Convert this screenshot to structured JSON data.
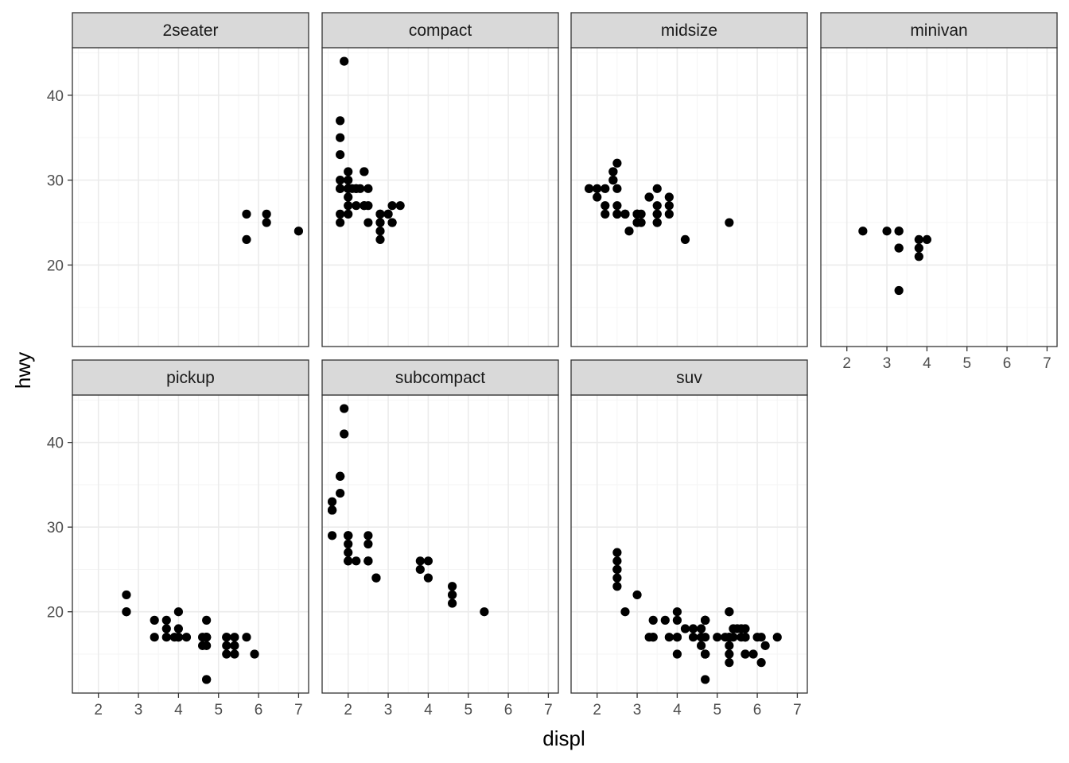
{
  "chart_data": {
    "type": "scatter",
    "facet_by": "class",
    "xlabel": "displ",
    "ylabel": "hwy",
    "xlim": [
      1.35,
      7.25
    ],
    "ylim": [
      10.4,
      45.6
    ],
    "x_ticks": [
      2,
      3,
      4,
      5,
      6,
      7
    ],
    "x_tick_labels": [
      "2",
      "3",
      "4",
      "5",
      "6",
      "7"
    ],
    "y_ticks": [
      20,
      30,
      40
    ],
    "y_tick_labels": [
      "20",
      "30",
      "40"
    ],
    "grid": true,
    "point_color": "#000000",
    "panel_border_color": "#333333",
    "strip_fill": "#d9d9d9",
    "grid_major_color": "#ebebeb",
    "grid_minor_color": "#f5f5f5",
    "facets": [
      {
        "name": "2seater",
        "points": [
          [
            5.7,
            26
          ],
          [
            5.7,
            23
          ],
          [
            6.2,
            26
          ],
          [
            6.2,
            25
          ],
          [
            7.0,
            24
          ]
        ]
      },
      {
        "name": "compact",
        "points": [
          [
            1.8,
            29
          ],
          [
            1.8,
            29
          ],
          [
            2.0,
            31
          ],
          [
            2.0,
            30
          ],
          [
            2.8,
            26
          ],
          [
            2.8,
            26
          ],
          [
            3.1,
            27
          ],
          [
            1.8,
            26
          ],
          [
            1.8,
            25
          ],
          [
            2.0,
            28
          ],
          [
            2.0,
            27
          ],
          [
            2.8,
            25
          ],
          [
            2.8,
            25
          ],
          [
            3.1,
            25
          ],
          [
            3.1,
            25
          ],
          [
            2.2,
            27
          ],
          [
            2.2,
            29
          ],
          [
            2.4,
            31
          ],
          [
            2.4,
            31
          ],
          [
            3.0,
            26
          ],
          [
            3.0,
            26
          ],
          [
            3.3,
            27
          ],
          [
            1.8,
            33
          ],
          [
            1.8,
            35
          ],
          [
            1.8,
            37
          ],
          [
            1.9,
            44
          ],
          [
            2.0,
            29
          ],
          [
            2.0,
            26
          ],
          [
            2.0,
            29
          ],
          [
            2.0,
            29
          ],
          [
            2.8,
            24
          ],
          [
            2.8,
            23
          ],
          [
            2.4,
            27
          ],
          [
            2.5,
            27
          ],
          [
            2.5,
            25
          ],
          [
            2.2,
            29
          ],
          [
            2.4,
            27
          ],
          [
            2.5,
            29
          ],
          [
            1.8,
            30
          ],
          [
            2.1,
            29
          ],
          [
            2.3,
            29
          ]
        ]
      },
      {
        "name": "midsize",
        "points": [
          [
            2.4,
            30
          ],
          [
            2.5,
            26
          ],
          [
            2.5,
            29
          ],
          [
            2.7,
            26
          ],
          [
            3.0,
            26
          ],
          [
            3.0,
            25
          ],
          [
            3.3,
            28
          ],
          [
            3.3,
            28
          ],
          [
            3.5,
            26
          ],
          [
            3.5,
            27
          ],
          [
            3.5,
            29
          ],
          [
            3.5,
            26
          ],
          [
            3.8,
            28
          ],
          [
            3.8,
            27
          ],
          [
            3.8,
            26
          ],
          [
            2.4,
            31
          ],
          [
            2.4,
            31
          ],
          [
            2.5,
            32
          ],
          [
            2.5,
            27
          ],
          [
            3.0,
            25
          ],
          [
            3.0,
            26
          ],
          [
            3.5,
            25
          ],
          [
            3.5,
            25
          ],
          [
            1.8,
            29
          ],
          [
            2.0,
            29
          ],
          [
            2.0,
            28
          ],
          [
            2.8,
            24
          ],
          [
            3.1,
            26
          ],
          [
            4.2,
            23
          ],
          [
            5.3,
            25
          ],
          [
            2.2,
            27
          ],
          [
            2.2,
            26
          ],
          [
            2.5,
            26
          ],
          [
            2.7,
            26
          ],
          [
            3.1,
            25
          ],
          [
            2.4,
            30
          ],
          [
            2.2,
            29
          ],
          [
            3.0,
            26
          ],
          [
            1.8,
            29
          ]
        ]
      },
      {
        "name": "minivan",
        "points": [
          [
            2.4,
            24
          ],
          [
            3.0,
            24
          ],
          [
            3.3,
            22
          ],
          [
            3.3,
            22
          ],
          [
            3.3,
            24
          ],
          [
            3.3,
            24
          ],
          [
            3.3,
            17
          ],
          [
            3.8,
            22
          ],
          [
            3.8,
            21
          ],
          [
            3.8,
            23
          ],
          [
            4.0,
            23
          ]
        ]
      },
      {
        "name": "pickup",
        "points": [
          [
            2.7,
            20
          ],
          [
            2.7,
            22
          ],
          [
            2.7,
            20
          ],
          [
            3.4,
            17
          ],
          [
            3.4,
            19
          ],
          [
            4.0,
            17
          ],
          [
            4.0,
            20
          ],
          [
            4.7,
            17
          ],
          [
            4.7,
            19
          ],
          [
            4.7,
            17
          ],
          [
            4.7,
            17
          ],
          [
            4.7,
            12
          ],
          [
            4.7,
            12
          ],
          [
            5.2,
            17
          ],
          [
            5.2,
            15
          ],
          [
            5.7,
            17
          ],
          [
            5.9,
            15
          ],
          [
            4.7,
            16
          ],
          [
            4.7,
            17
          ],
          [
            5.2,
            16
          ],
          [
            5.4,
            15
          ],
          [
            5.4,
            17
          ],
          [
            3.7,
            19
          ],
          [
            3.7,
            18
          ],
          [
            3.9,
            17
          ],
          [
            4.2,
            17
          ],
          [
            4.0,
            18
          ],
          [
            4.6,
            16
          ],
          [
            4.6,
            17
          ],
          [
            5.4,
            16
          ],
          [
            5.2,
            17
          ],
          [
            3.7,
            17
          ],
          [
            4.0,
            17
          ]
        ]
      },
      {
        "name": "subcompact",
        "points": [
          [
            3.8,
            26
          ],
          [
            3.8,
            25
          ],
          [
            4.0,
            26
          ],
          [
            4.0,
            24
          ],
          [
            4.6,
            21
          ],
          [
            4.6,
            22
          ],
          [
            4.6,
            23
          ],
          [
            4.6,
            22
          ],
          [
            5.4,
            20
          ],
          [
            1.6,
            33
          ],
          [
            1.6,
            32
          ],
          [
            1.6,
            32
          ],
          [
            1.6,
            29
          ],
          [
            1.6,
            32
          ],
          [
            1.8,
            34
          ],
          [
            1.8,
            36
          ],
          [
            1.8,
            36
          ],
          [
            2.0,
            29
          ],
          [
            2.0,
            26
          ],
          [
            2.0,
            27
          ],
          [
            2.0,
            28
          ],
          [
            2.2,
            26
          ],
          [
            2.5,
            26
          ],
          [
            2.5,
            29
          ],
          [
            2.5,
            28
          ],
          [
            2.7,
            24
          ],
          [
            2.7,
            24
          ],
          [
            1.9,
            44
          ],
          [
            1.9,
            41
          ],
          [
            2.0,
            29
          ],
          [
            2.0,
            26
          ],
          [
            2.5,
            26
          ],
          [
            2.5,
            26
          ],
          [
            2.0,
            29
          ]
        ]
      },
      {
        "name": "suv",
        "points": [
          [
            5.3,
            20
          ],
          [
            5.3,
            15
          ],
          [
            5.3,
            20
          ],
          [
            5.7,
            17
          ],
          [
            6.0,
            17
          ],
          [
            5.7,
            17
          ],
          [
            6.5,
            17
          ],
          [
            4.7,
            19
          ],
          [
            4.7,
            19
          ],
          [
            4.7,
            17
          ],
          [
            4.7,
            12
          ],
          [
            5.7,
            17
          ],
          [
            6.1,
            14
          ],
          [
            5.3,
            17
          ],
          [
            4.7,
            15
          ],
          [
            4.0,
            17
          ],
          [
            4.0,
            17
          ],
          [
            4.6,
            17
          ],
          [
            5.0,
            17
          ],
          [
            5.4,
            18
          ],
          [
            5.4,
            17
          ],
          [
            4.2,
            18
          ],
          [
            4.6,
            16
          ],
          [
            3.3,
            17
          ],
          [
            3.4,
            19
          ],
          [
            3.7,
            19
          ],
          [
            4.0,
            19
          ],
          [
            4.0,
            20
          ],
          [
            4.7,
            19
          ],
          [
            4.7,
            15
          ],
          [
            5.7,
            18
          ],
          [
            5.9,
            15
          ],
          [
            5.7,
            15
          ],
          [
            4.0,
            15
          ],
          [
            5.3,
            16
          ],
          [
            2.5,
            23
          ],
          [
            2.5,
            24
          ],
          [
            2.5,
            27
          ],
          [
            2.5,
            25
          ],
          [
            2.5,
            25
          ],
          [
            2.5,
            26
          ],
          [
            2.7,
            20
          ],
          [
            3.0,
            22
          ],
          [
            3.8,
            17
          ],
          [
            4.4,
            18
          ],
          [
            4.7,
            19
          ],
          [
            4.7,
            15
          ],
          [
            5.3,
            17
          ],
          [
            5.3,
            14
          ],
          [
            5.6,
            18
          ],
          [
            5.6,
            17
          ],
          [
            6.2,
            16
          ],
          [
            3.4,
            17
          ],
          [
            5.7,
            15
          ],
          [
            4.4,
            17
          ],
          [
            4.6,
            18
          ],
          [
            5.2,
            17
          ],
          [
            6.1,
            17
          ],
          [
            2.5,
            25
          ],
          [
            3.4,
            17
          ],
          [
            4.7,
            15
          ],
          [
            5.5,
            18
          ]
        ]
      }
    ]
  }
}
